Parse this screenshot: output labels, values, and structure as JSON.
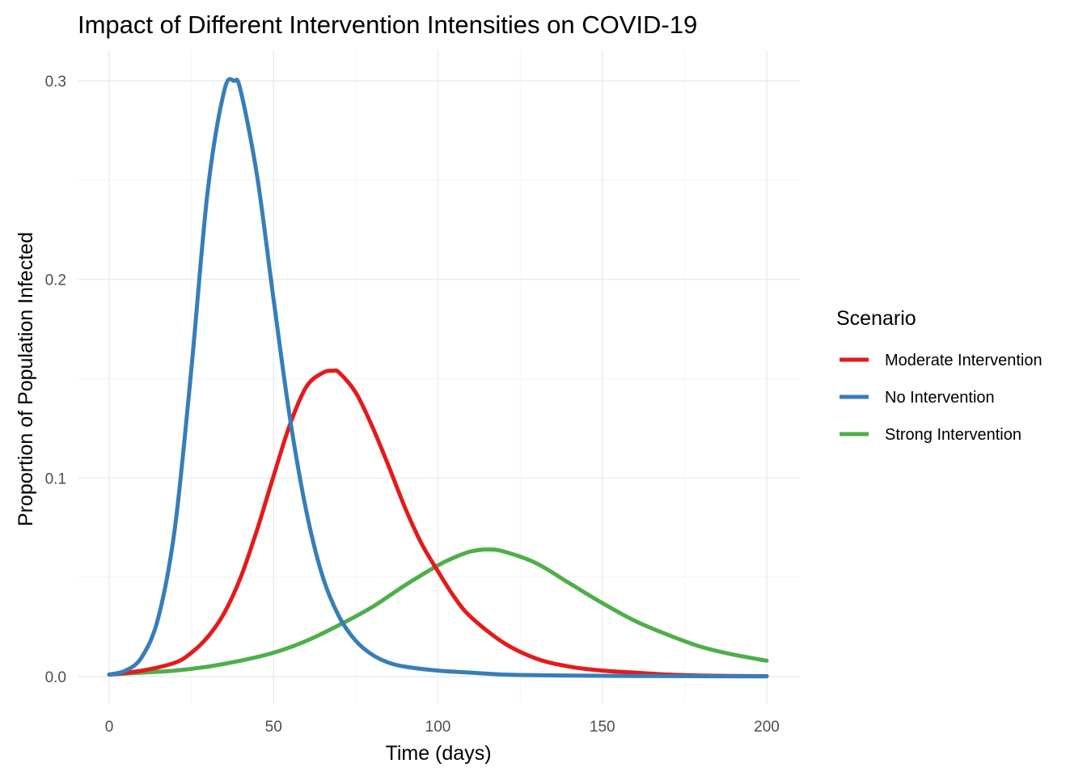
{
  "chart_data": {
    "type": "line",
    "title": "Impact of Different Intervention Intensities on COVID-19",
    "xlabel": "Time (days)",
    "ylabel": "Proportion of Population Infected",
    "xlim": [
      0,
      200
    ],
    "ylim": [
      0,
      0.3
    ],
    "x_ticks": [
      0,
      50,
      100,
      150,
      200
    ],
    "y_ticks": [
      0.0,
      0.1,
      0.2,
      0.3
    ],
    "x_tick_labels": [
      "0",
      "50",
      "100",
      "150",
      "200"
    ],
    "y_tick_labels": [
      "0.0",
      "0.1",
      "0.2",
      "0.3"
    ],
    "grid": true,
    "legend": {
      "title": "Scenario",
      "position": "right",
      "entries": [
        "Moderate Intervention",
        "No Intervention",
        "Strong Intervention"
      ]
    },
    "series": [
      {
        "name": "Moderate Intervention",
        "color": "#e41a1c",
        "x": [
          0,
          10,
          20,
          25,
          30,
          35,
          40,
          45,
          50,
          55,
          60,
          65,
          68,
          70,
          75,
          80,
          85,
          90,
          95,
          100,
          105,
          110,
          120,
          130,
          140,
          150,
          160,
          170,
          180,
          190,
          200
        ],
        "y": [
          0.001,
          0.003,
          0.007,
          0.012,
          0.02,
          0.032,
          0.05,
          0.074,
          0.101,
          0.127,
          0.146,
          0.153,
          0.154,
          0.153,
          0.143,
          0.126,
          0.106,
          0.085,
          0.067,
          0.053,
          0.04,
          0.03,
          0.017,
          0.009,
          0.005,
          0.003,
          0.002,
          0.001,
          0.0005,
          0.0003,
          0.0002
        ]
      },
      {
        "name": "No Intervention",
        "color": "#377eb8",
        "x": [
          0,
          5,
          10,
          15,
          20,
          25,
          30,
          35,
          38,
          40,
          45,
          50,
          55,
          60,
          65,
          70,
          75,
          80,
          85,
          90,
          100,
          110,
          120,
          130,
          140,
          160,
          180,
          200
        ],
        "y": [
          0.001,
          0.003,
          0.01,
          0.03,
          0.075,
          0.155,
          0.245,
          0.295,
          0.3,
          0.295,
          0.252,
          0.19,
          0.13,
          0.083,
          0.05,
          0.03,
          0.018,
          0.011,
          0.007,
          0.005,
          0.003,
          0.002,
          0.001,
          0.0007,
          0.0005,
          0.0003,
          0.0002,
          0.0001
        ]
      },
      {
        "name": "Strong Intervention",
        "color": "#4daf4a",
        "x": [
          0,
          10,
          20,
          30,
          40,
          50,
          60,
          70,
          80,
          90,
          100,
          105,
          110,
          115,
          120,
          130,
          140,
          150,
          160,
          170,
          180,
          190,
          200
        ],
        "y": [
          0.001,
          0.002,
          0.003,
          0.005,
          0.008,
          0.012,
          0.018,
          0.026,
          0.035,
          0.046,
          0.056,
          0.06,
          0.063,
          0.064,
          0.063,
          0.057,
          0.047,
          0.037,
          0.028,
          0.021,
          0.015,
          0.011,
          0.008
        ]
      }
    ]
  }
}
